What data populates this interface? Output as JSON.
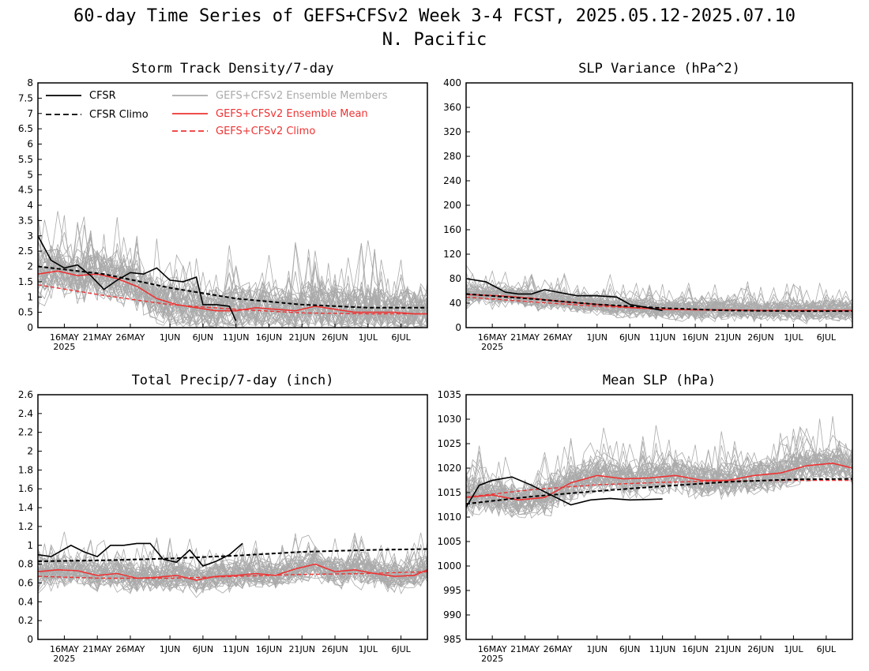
{
  "figure": {
    "title_line1": "60-day Time Series of GEFS+CFSv2 Week 3-4 FCST, 2025.05.12-2025.07.10",
    "title_line2": "N. Pacific"
  },
  "colors": {
    "cfsr": "#000000",
    "members": "#aaaaaa",
    "ens_mean": "#ee3333",
    "gefs_climo": "#ee3333"
  },
  "legend": {
    "cfsr": "CFSR",
    "cfsr_climo": "CFSR Climo",
    "members": "GEFS+CFSv2 Ensemble Members",
    "ens_mean": "GEFS+CFSv2 Ensemble Mean",
    "gefs_climo": "GEFS+CFSv2 Climo"
  },
  "x_axis": {
    "ticks": [
      {
        "day": 4,
        "label": "16MAY"
      },
      {
        "day": 9,
        "label": "21MAY"
      },
      {
        "day": 14,
        "label": "26MAY"
      },
      {
        "day": 20,
        "label": "1JUN"
      },
      {
        "day": 25,
        "label": "6JUN"
      },
      {
        "day": 30,
        "label": "11JUN"
      },
      {
        "day": 35,
        "label": "16JUN"
      },
      {
        "day": 40,
        "label": "21JUN"
      },
      {
        "day": 45,
        "label": "26JUN"
      },
      {
        "day": 50,
        "label": "1JUL"
      },
      {
        "day": 55,
        "label": "6JUL"
      }
    ],
    "year_label": "2025",
    "start_date": "2025-05-12",
    "end_date": "2025-07-10"
  },
  "chart_data": [
    {
      "type": "line",
      "title": "Storm Track Density/7-day",
      "ylim": [
        0,
        8
      ],
      "yticks": [
        "0",
        "0.5",
        "1",
        "1.5",
        "2",
        "2.5",
        "3",
        "3.5",
        "4",
        "4.5",
        "5",
        "5.5",
        "6",
        "6.5",
        "7",
        "7.5",
        "8"
      ],
      "show_legend": true,
      "cfsr": {
        "x": [
          0,
          2,
          4,
          6,
          8,
          10,
          12,
          14,
          16,
          18,
          20,
          22,
          24,
          25,
          27,
          29,
          30
        ],
        "y": [
          3.0,
          2.2,
          1.95,
          2.05,
          1.7,
          1.25,
          1.55,
          1.8,
          1.75,
          1.95,
          1.55,
          1.5,
          1.65,
          0.75,
          0.75,
          0.7,
          0.22
        ]
      },
      "cfsr_climo": {
        "x": [
          0,
          10,
          20,
          30,
          40,
          50,
          59
        ],
        "y": [
          2.0,
          1.75,
          1.3,
          0.95,
          0.75,
          0.65,
          0.65
        ]
      },
      "gefs_climo": {
        "x": [
          0,
          10,
          20,
          30,
          40,
          50,
          59
        ],
        "y": [
          1.4,
          1.05,
          0.75,
          0.6,
          0.48,
          0.45,
          0.45
        ]
      },
      "ens_mean": {
        "x": [
          0,
          3,
          6,
          9,
          12,
          15,
          18,
          21,
          24,
          27,
          30,
          33,
          36,
          39,
          42,
          45,
          48,
          51,
          54,
          57,
          59
        ],
        "y": [
          1.75,
          1.85,
          1.7,
          1.75,
          1.6,
          1.35,
          0.95,
          0.75,
          0.65,
          0.55,
          0.55,
          0.65,
          0.6,
          0.55,
          0.7,
          0.6,
          0.5,
          0.5,
          0.5,
          0.45,
          0.45
        ]
      },
      "members": {
        "n": 40,
        "base_peak": 2.0,
        "spread": 1.0
      }
    },
    {
      "type": "line",
      "title": "SLP Variance (hPa^2)",
      "ylim": [
        0,
        400
      ],
      "yticks": [
        "0",
        "40",
        "80",
        "120",
        "160",
        "200",
        "240",
        "280",
        "320",
        "360",
        "400"
      ],
      "show_legend": false,
      "cfsr": {
        "x": [
          0,
          3,
          6,
          8,
          10,
          12,
          14,
          17,
          20,
          23,
          25,
          28,
          30
        ],
        "y": [
          80,
          75,
          58,
          55,
          55,
          62,
          58,
          52,
          52,
          50,
          38,
          32,
          28
        ]
      },
      "cfsr_climo": {
        "x": [
          0,
          10,
          20,
          30,
          40,
          50,
          59
        ],
        "y": [
          55,
          47,
          38,
          32,
          28,
          27,
          27
        ]
      },
      "gefs_climo": {
        "x": [
          0,
          10,
          20,
          30,
          40,
          50,
          59
        ],
        "y": [
          50,
          42,
          35,
          30,
          28,
          27,
          27
        ]
      },
      "ens_mean": {
        "x": [
          0,
          5,
          10,
          15,
          20,
          25,
          30,
          35,
          40,
          45,
          50,
          55,
          59
        ],
        "y": [
          54,
          52,
          48,
          42,
          38,
          33,
          30,
          29,
          29,
          28,
          28,
          28,
          28
        ]
      },
      "members": {
        "n": 40,
        "base_peak": 55,
        "spread": 22
      }
    },
    {
      "type": "line",
      "title": "Total Precip/7-day (inch)",
      "ylim": [
        0,
        2.6
      ],
      "yticks": [
        "0",
        "0.2",
        "0.4",
        "0.6",
        "0.8",
        "1",
        "1.2",
        "1.4",
        "1.6",
        "1.8",
        "2",
        "2.2",
        "2.4",
        "2.6"
      ],
      "show_legend": false,
      "cfsr": {
        "x": [
          0,
          2,
          5,
          7,
          9,
          11,
          13,
          15,
          17,
          19,
          21,
          23,
          25,
          27,
          29,
          31
        ],
        "y": [
          0.9,
          0.88,
          1.0,
          0.93,
          0.88,
          1.0,
          1.0,
          1.02,
          1.02,
          0.85,
          0.82,
          0.95,
          0.78,
          0.83,
          0.9,
          1.02
        ]
      },
      "cfsr_climo": {
        "x": [
          0,
          10,
          20,
          30,
          40,
          50,
          59
        ],
        "y": [
          0.83,
          0.84,
          0.86,
          0.89,
          0.93,
          0.95,
          0.96
        ]
      },
      "gefs_climo": {
        "x": [
          0,
          10,
          20,
          30,
          40,
          50,
          59
        ],
        "y": [
          0.67,
          0.65,
          0.65,
          0.67,
          0.69,
          0.7,
          0.72
        ]
      },
      "ens_mean": {
        "x": [
          0,
          3,
          6,
          9,
          12,
          15,
          18,
          21,
          24,
          27,
          30,
          33,
          36,
          39,
          42,
          45,
          48,
          51,
          54,
          57,
          59
        ],
        "y": [
          0.72,
          0.74,
          0.73,
          0.68,
          0.7,
          0.65,
          0.66,
          0.68,
          0.63,
          0.67,
          0.68,
          0.7,
          0.68,
          0.75,
          0.8,
          0.72,
          0.74,
          0.7,
          0.67,
          0.68,
          0.74
        ]
      },
      "members": {
        "n": 40,
        "base_peak": 0.7,
        "spread": 0.2
      }
    },
    {
      "type": "line",
      "title": "Mean SLP (hPa)",
      "ylim": [
        985,
        1035
      ],
      "yticks": [
        "985",
        "990",
        "995",
        "1000",
        "1005",
        "1010",
        "1015",
        "1020",
        "1025",
        "1030",
        "1035"
      ],
      "show_legend": false,
      "cfsr": {
        "x": [
          0,
          2,
          4,
          7,
          10,
          13,
          16,
          19,
          22,
          25,
          28,
          30
        ],
        "y": [
          1012,
          1016.5,
          1017.5,
          1018.2,
          1016.5,
          1014.5,
          1012.5,
          1013.5,
          1013.8,
          1013.5,
          1013.6,
          1013.7
        ]
      },
      "cfsr_climo": {
        "x": [
          0,
          10,
          20,
          30,
          40,
          50,
          59
        ],
        "y": [
          1012.7,
          1014.2,
          1015.3,
          1016.3,
          1017.2,
          1017.7,
          1017.8
        ]
      },
      "gefs_climo": {
        "x": [
          0,
          10,
          20,
          30,
          40,
          50,
          59
        ],
        "y": [
          1014.1,
          1015.6,
          1016.6,
          1017.1,
          1017.4,
          1017.5,
          1017.5
        ]
      },
      "ens_mean": {
        "x": [
          0,
          4,
          8,
          12,
          16,
          20,
          24,
          28,
          32,
          36,
          40,
          44,
          48,
          52,
          56,
          59
        ],
        "y": [
          1014,
          1014.5,
          1013.5,
          1014,
          1017,
          1018.5,
          1017.8,
          1018,
          1018.5,
          1017.5,
          1017.5,
          1018.5,
          1019,
          1020.5,
          1021,
          1020
        ]
      },
      "members": {
        "n": 40,
        "base_peak": 1016,
        "spread": 4.5
      }
    }
  ]
}
